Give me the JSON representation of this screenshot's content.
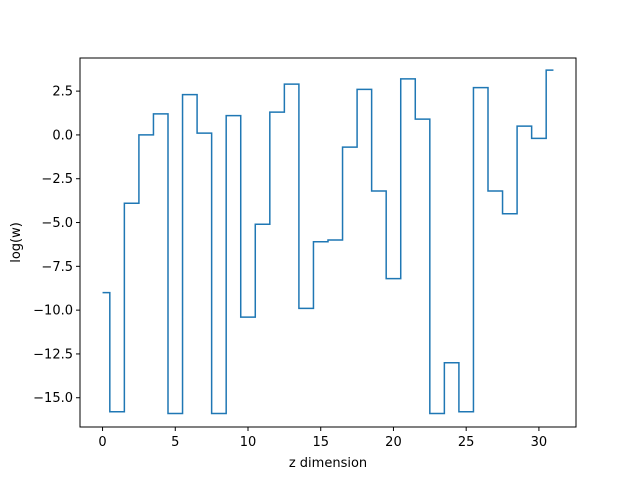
{
  "chart_data": {
    "type": "line",
    "title": "",
    "xlabel": "z dimension",
    "ylabel": "log(w)",
    "xlim": [
      -1.55,
      32.55
    ],
    "ylim": [
      -16.67,
      4.39
    ],
    "grid": false,
    "drawstyle": "steps-mid",
    "line_color": "#1f77b4",
    "x_ticks": [
      0,
      5,
      10,
      15,
      20,
      25,
      30
    ],
    "x_tick_labels": [
      "0",
      "5",
      "10",
      "15",
      "20",
      "25",
      "30"
    ],
    "y_ticks": [
      2.5,
      0.0,
      -2.5,
      -5.0,
      -7.5,
      -10.0,
      -12.5,
      -15.0
    ],
    "y_tick_labels": [
      "2.5",
      "0.0",
      "−2.5",
      "−5.0",
      "−7.5",
      "−10.0",
      "−12.5",
      "−15.0"
    ],
    "series": [
      {
        "x": [
          0,
          1,
          2,
          3,
          4,
          5,
          6,
          7,
          8,
          9,
          10,
          11,
          12,
          13,
          14,
          15,
          16,
          17,
          18,
          19,
          20,
          21,
          22,
          23,
          24,
          25,
          26,
          27,
          28,
          29,
          30,
          31
        ],
        "values": [
          -9.0,
          -15.8,
          -3.9,
          0.0,
          1.2,
          -15.9,
          2.3,
          0.1,
          -15.9,
          1.1,
          -10.4,
          -5.1,
          1.3,
          2.9,
          -9.9,
          -6.1,
          -6.0,
          -0.7,
          2.6,
          -3.2,
          -8.2,
          3.2,
          0.9,
          -15.9,
          -13.0,
          -15.8,
          2.7,
          -3.2,
          -4.5,
          0.5,
          -0.2,
          3.7
        ]
      }
    ]
  }
}
